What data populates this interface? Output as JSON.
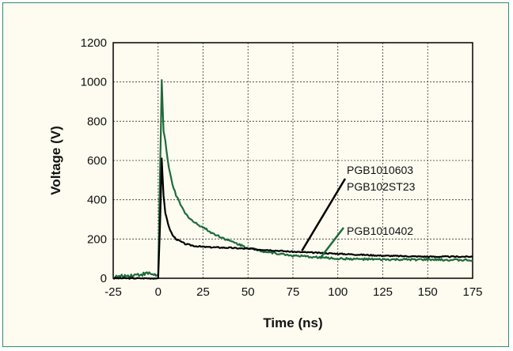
{
  "colors": {
    "frame_border": "#2e8b6e",
    "background": "#fefcf0",
    "series_black": "#000000",
    "series_green": "#1f6b3c"
  },
  "chart_data": {
    "type": "line",
    "xlabel": "Time (ns)",
    "ylabel": "Voltage (V)",
    "xlim": [
      -25,
      175
    ],
    "ylim": [
      0,
      1200
    ],
    "x_ticks": [
      "-25",
      "0",
      "25",
      "50",
      "75",
      "100",
      "125",
      "150",
      "175"
    ],
    "y_ticks": [
      "0",
      "200",
      "400",
      "600",
      "800",
      "1000",
      "1200"
    ],
    "grid": true,
    "series": [
      {
        "name": "PGB1010603 PGB102ST23",
        "color": "#000000",
        "points": [
          [
            -25,
            0
          ],
          [
            -5,
            0
          ],
          [
            0,
            0
          ],
          [
            1,
            250
          ],
          [
            2,
            610
          ],
          [
            3,
            420
          ],
          [
            4,
            330
          ],
          [
            5,
            300
          ],
          [
            6,
            260
          ],
          [
            8,
            220
          ],
          [
            10,
            200
          ],
          [
            15,
            175
          ],
          [
            20,
            165
          ],
          [
            25,
            160
          ],
          [
            30,
            158
          ],
          [
            40,
            155
          ],
          [
            50,
            150
          ],
          [
            60,
            145
          ],
          [
            75,
            135
          ],
          [
            100,
            125
          ],
          [
            125,
            115
          ],
          [
            150,
            110
          ],
          [
            175,
            110
          ]
        ]
      },
      {
        "name": "PGB1010402",
        "color": "#1f6b3c",
        "points": [
          [
            -25,
            5
          ],
          [
            -15,
            15
          ],
          [
            -10,
            20
          ],
          [
            -5,
            25
          ],
          [
            0,
            15
          ],
          [
            1,
            500
          ],
          [
            2,
            1010
          ],
          [
            3,
            750
          ],
          [
            4,
            700
          ],
          [
            5,
            620
          ],
          [
            6,
            560
          ],
          [
            8,
            480
          ],
          [
            10,
            420
          ],
          [
            15,
            330
          ],
          [
            20,
            285
          ],
          [
            25,
            260
          ],
          [
            30,
            230
          ],
          [
            40,
            190
          ],
          [
            50,
            155
          ],
          [
            60,
            135
          ],
          [
            75,
            115
          ],
          [
            100,
            100
          ],
          [
            125,
            95
          ],
          [
            150,
            95
          ],
          [
            175,
            92
          ]
        ]
      }
    ],
    "annotations": [
      {
        "lines": [
          "PGB1010603",
          "PGB102ST23"
        ],
        "series": "PGB1010603 PGB102ST23",
        "pointer_at": [
          80,
          140
        ]
      },
      {
        "lines": [
          "PGB1010402"
        ],
        "series": "PGB1010402",
        "pointer_at": [
          90,
          100
        ]
      }
    ]
  }
}
